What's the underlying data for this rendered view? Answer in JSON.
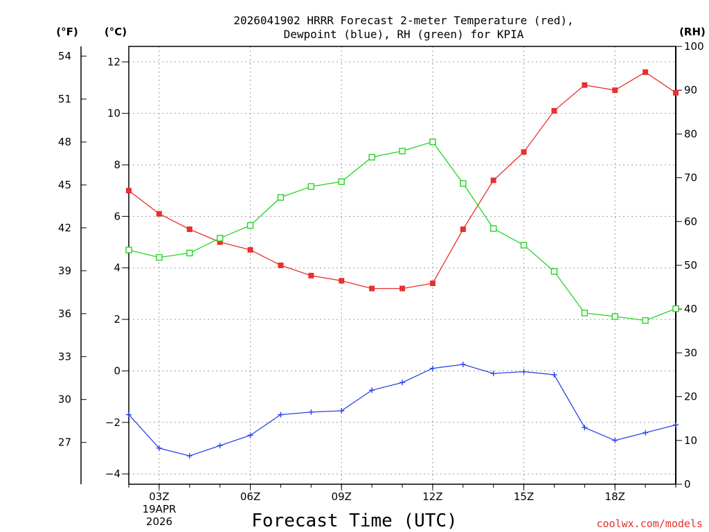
{
  "chart_data": {
    "type": "line",
    "title_line1": "2026041902 HRRR Forecast 2-meter Temperature (red),",
    "title_line2": "Dewpoint (blue), RH (green) for KPIA",
    "xlabel": "Forecast Time (UTC)",
    "x": [
      2,
      3,
      4,
      5,
      6,
      7,
      8,
      9,
      10,
      11,
      12,
      13,
      14,
      15,
      16,
      17,
      18,
      19,
      20
    ],
    "x_ticks": [
      {
        "x": 3,
        "label": "03Z"
      },
      {
        "x": 6,
        "label": "06Z"
      },
      {
        "x": 9,
        "label": "09Z"
      },
      {
        "x": 12,
        "label": "12Z"
      },
      {
        "x": 15,
        "label": "15Z"
      },
      {
        "x": 18,
        "label": "18Z"
      }
    ],
    "date_label_1": "19APR",
    "date_label_2": "2026",
    "xlim": [
      2,
      20
    ],
    "left_axis": {
      "label": "(°C)",
      "ylim": [
        -4.4,
        12.6
      ],
      "ticks": [
        12,
        10,
        8,
        6,
        4,
        2,
        0,
        -2,
        -4
      ],
      "tick_labels": [
        "12",
        "10",
        "8",
        "6",
        "4",
        "2",
        "0",
        "−2",
        "−4"
      ]
    },
    "f_axis": {
      "label": "(°F)",
      "ticks": [
        54,
        51,
        48,
        45,
        42,
        39,
        36,
        33,
        30,
        27
      ],
      "tick_labels": [
        "54",
        "51",
        "48",
        "45",
        "42",
        "39",
        "36",
        "33",
        "30",
        "27"
      ]
    },
    "right_axis": {
      "label": "(RH)",
      "ylim": [
        0,
        100
      ],
      "ticks": [
        100,
        90,
        80,
        70,
        60,
        50,
        40,
        30,
        20,
        10,
        0
      ],
      "tick_labels": [
        "100",
        "90",
        "80",
        "70",
        "60",
        "50",
        "40",
        "30",
        "20",
        "10",
        "0"
      ]
    },
    "series": [
      {
        "name": "Temperature",
        "axis": "C",
        "color": "#e83030",
        "marker": "filled-square",
        "values": [
          7.0,
          6.1,
          5.5,
          5.0,
          4.7,
          4.1,
          3.7,
          3.5,
          3.2,
          3.2,
          3.4,
          5.5,
          7.4,
          8.5,
          10.1,
          11.1,
          10.9,
          11.6,
          10.8
        ]
      },
      {
        "name": "Dewpoint",
        "axis": "C",
        "color": "#2a45e6",
        "marker": "plus",
        "values": [
          -1.7,
          -3.0,
          -3.3,
          -2.9,
          -2.5,
          -1.7,
          -1.6,
          -1.55,
          -0.75,
          -0.45,
          0.1,
          0.25,
          -0.1,
          -0.03,
          -0.15,
          -2.2,
          -2.7,
          -2.4,
          -2.1
        ]
      },
      {
        "name": "RH",
        "axis": "RH",
        "color": "#22d422",
        "marker": "open-square",
        "values": [
          53.5,
          51.8,
          52.8,
          56.2,
          59.1,
          65.5,
          68.0,
          69.1,
          74.7,
          76.1,
          78.2,
          68.7,
          58.4,
          54.6,
          48.6,
          39.1,
          38.3,
          37.4,
          40.1
        ]
      }
    ],
    "grid": true,
    "credit": "coolwx.com/models"
  }
}
